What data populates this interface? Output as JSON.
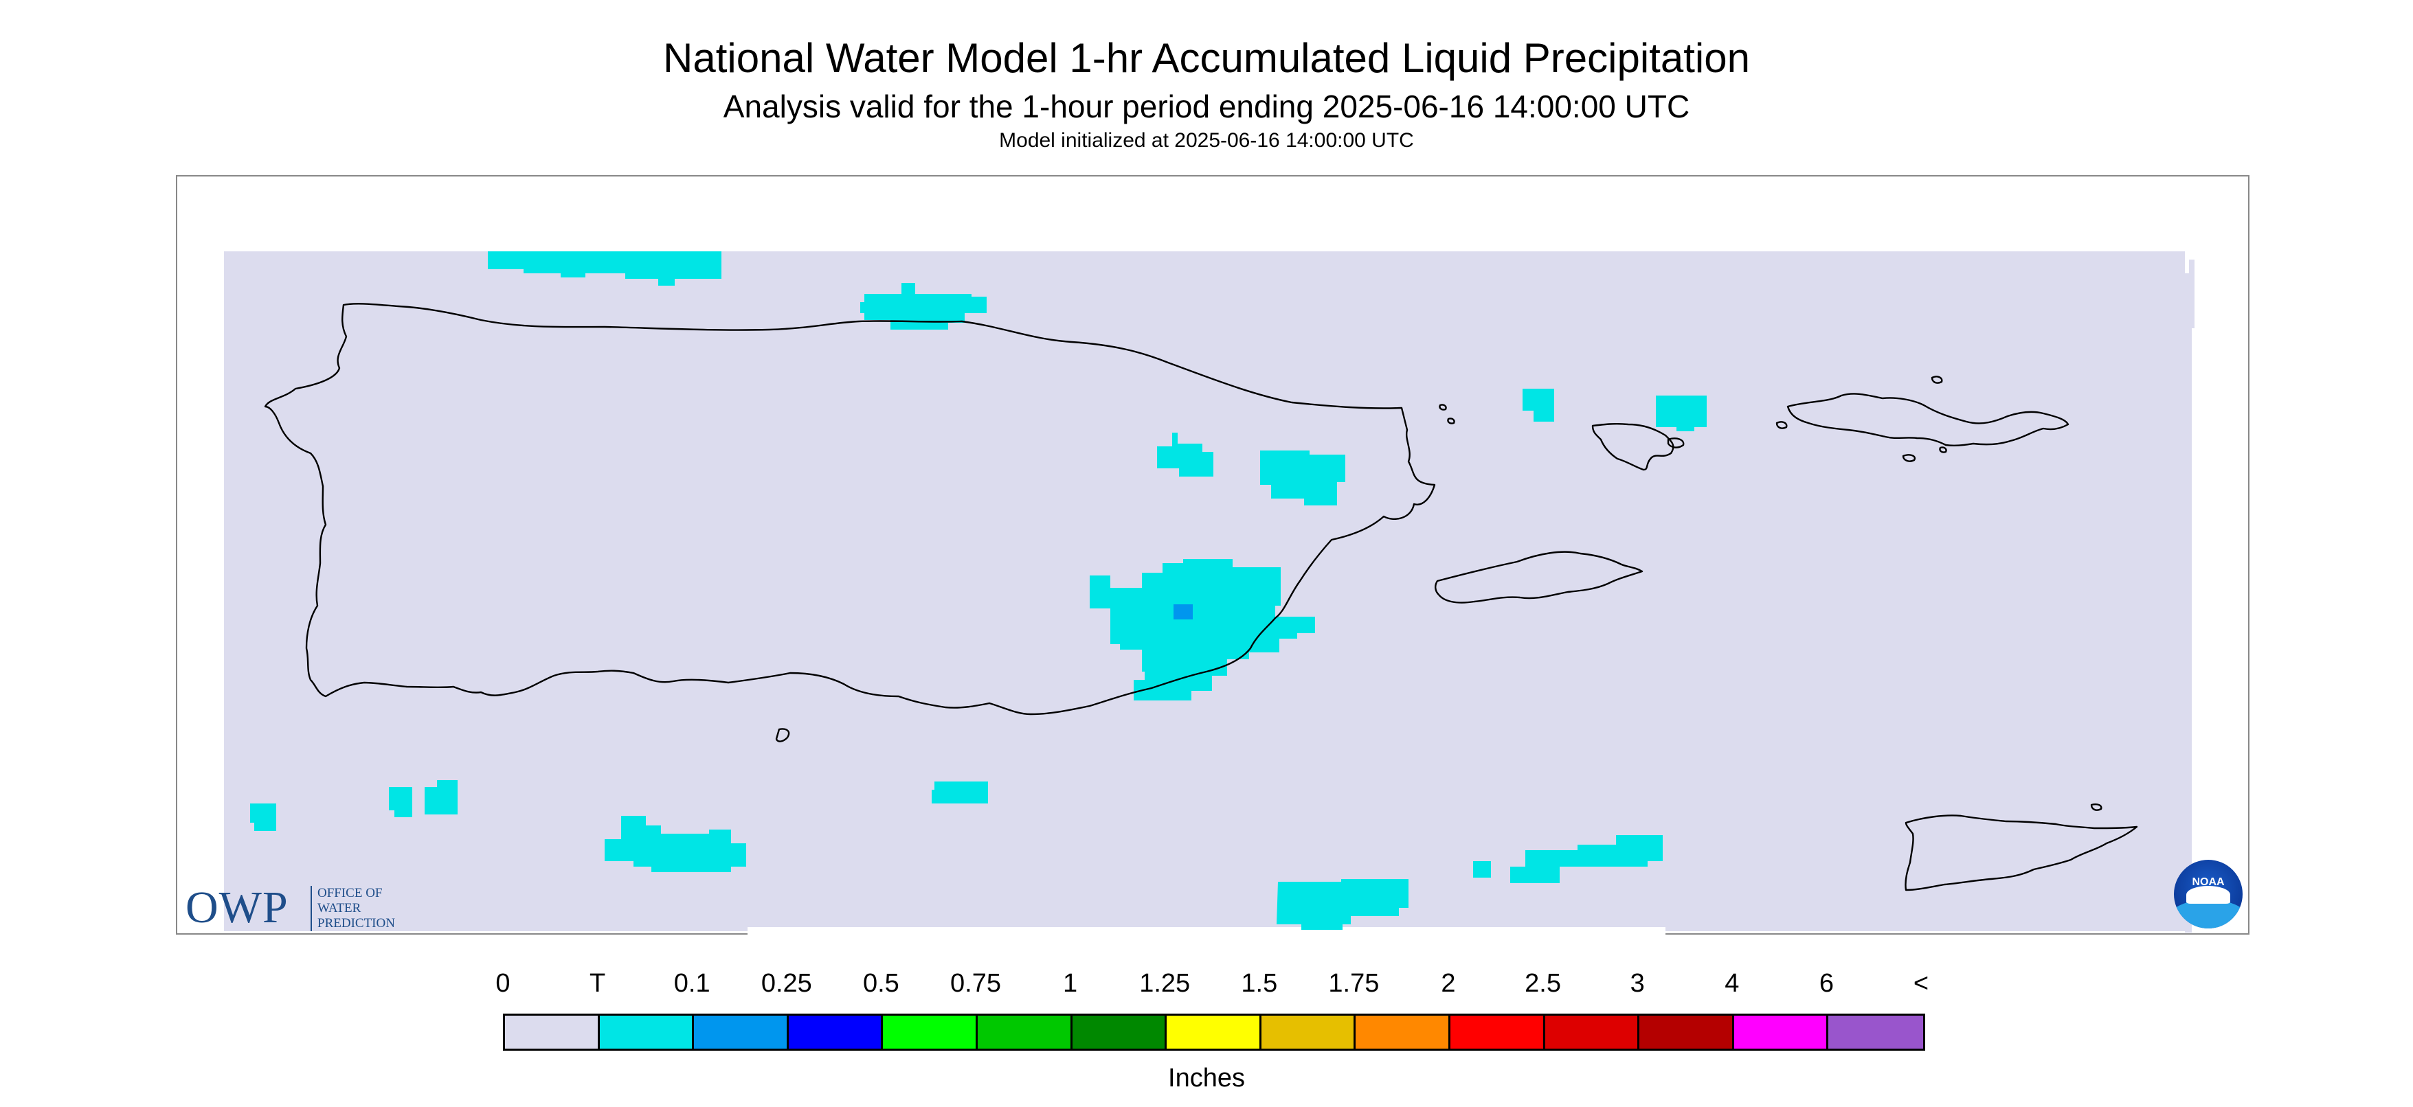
{
  "title": "National Water Model 1-hr Accumulated Liquid Precipitation",
  "subtitle": "Analysis valid for the 1-hour period ending 2025-06-16 14:00:00 UTC",
  "init_line": "Model initialized at 2025-06-16 14:00:00 UTC",
  "map": {
    "background_color": "#dcdcee",
    "coast_color": "#000000",
    "precip_trace_color": "#00e5e5",
    "precip_01_color": "#0096ee"
  },
  "logos": {
    "owp_big": "OWP",
    "owp_small": [
      "OFFICE OF",
      "WATER",
      "PREDICTION"
    ],
    "noaa": "NOAA"
  },
  "legend": {
    "labels": [
      "0",
      "T",
      "0.1",
      "0.25",
      "0.5",
      "0.75",
      "1",
      "1.25",
      "1.5",
      "1.75",
      "2",
      "2.5",
      "3",
      "4",
      "6",
      "<"
    ],
    "colors": [
      "#dcdcee",
      "#00e5e5",
      "#0096ee",
      "#0000ff",
      "#00ff00",
      "#00c800",
      "#008800",
      "#ffff00",
      "#e6bf00",
      "#ff8800",
      "#ff0000",
      "#dd0000",
      "#b40000",
      "#ff00ff",
      "#9955cc"
    ],
    "unit": "Inches"
  }
}
